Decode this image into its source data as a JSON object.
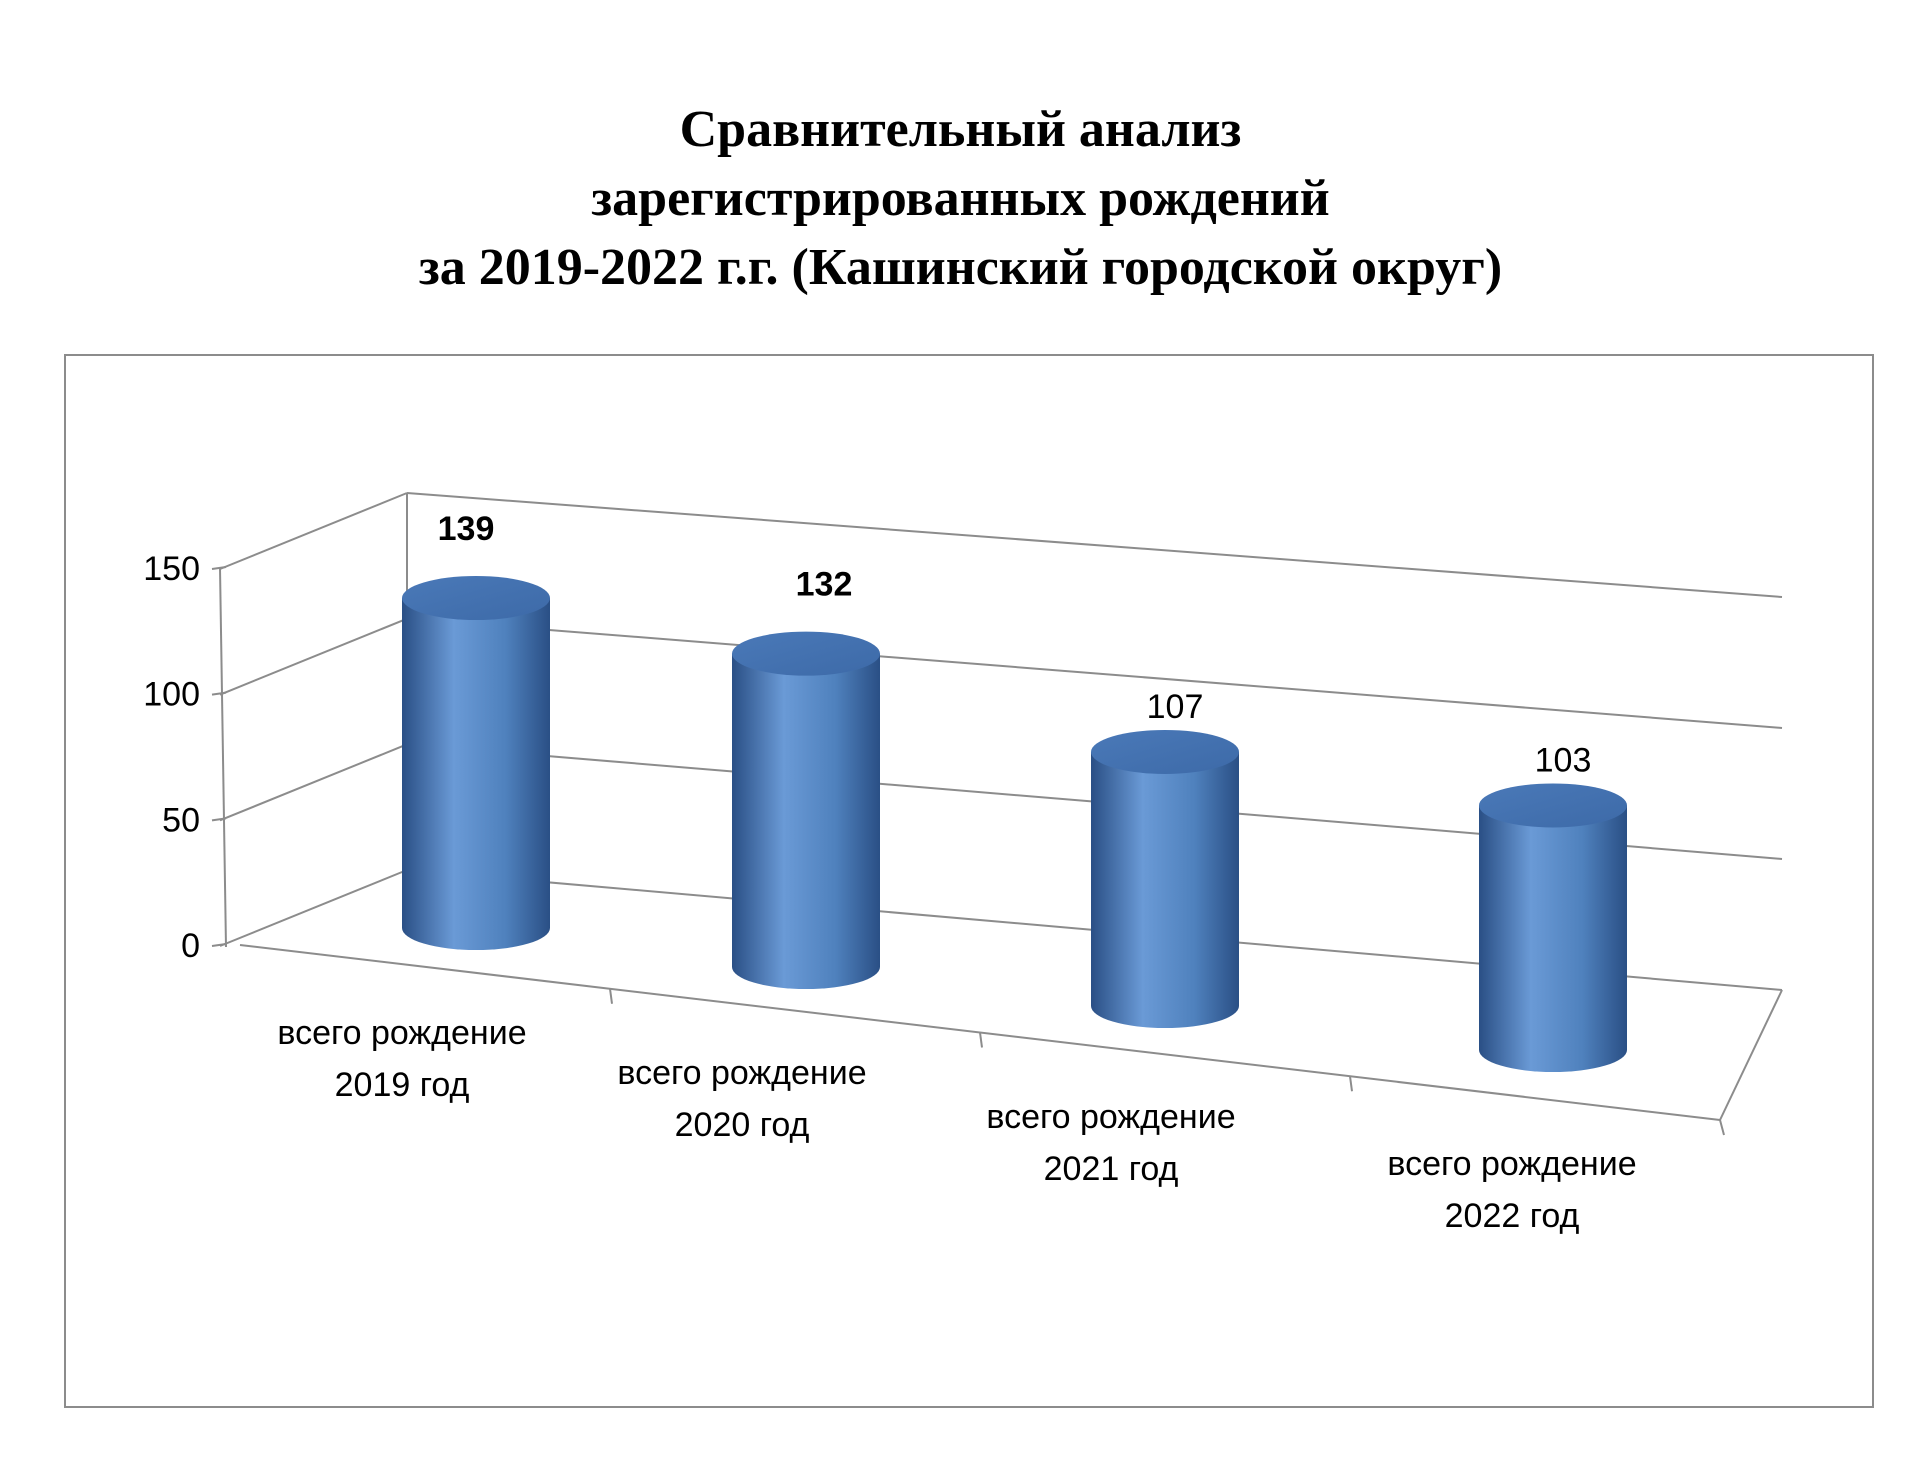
{
  "chart_data": {
    "type": "bar",
    "style": "3d-cylinder",
    "title_lines": [
      "Сравнительный анализ",
      "зарегистрированных рождений",
      "за 2019-2022 г.г. (Кашинский городской округ)"
    ],
    "categories": [
      [
        "всего рождение",
        "2019 год"
      ],
      [
        "всего рождение",
        "2020 год"
      ],
      [
        "всего рождение",
        "2021 год"
      ],
      [
        "всего рождение",
        "2022 год"
      ]
    ],
    "values": [
      139,
      132,
      107,
      103
    ],
    "data_labels": [
      "139",
      "132",
      "107",
      "103"
    ],
    "bold_labels": [
      true,
      true,
      false,
      false
    ],
    "yticks": [
      0,
      50,
      100,
      150
    ],
    "ylim": [
      0,
      150
    ],
    "grid": true,
    "legend": "none",
    "colors": {
      "bar": "#4f81bd",
      "bar_dark": "#2a4f85",
      "bar_light": "#6a9ad6",
      "top": "#3d6aa8",
      "grid": "#8c8c8c"
    }
  }
}
